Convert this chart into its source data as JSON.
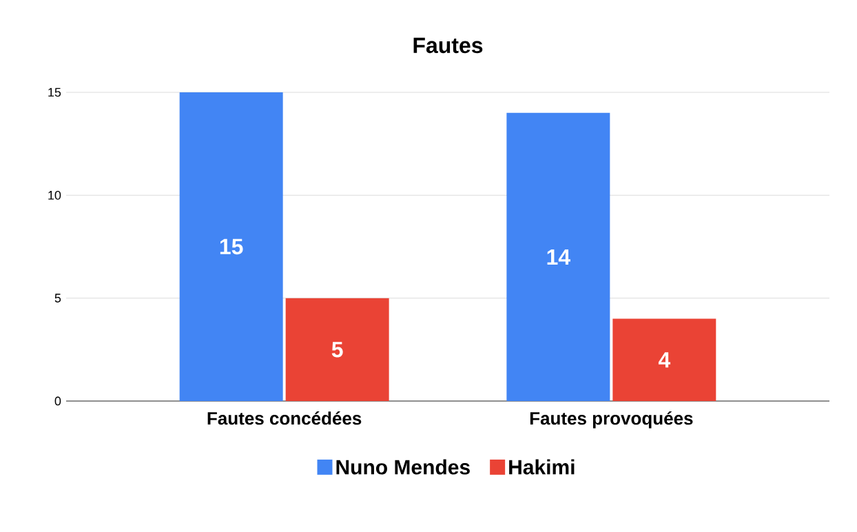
{
  "chart_data": {
    "type": "bar",
    "title": "Fautes",
    "categories": [
      "Fautes concédées",
      "Fautes provoquées"
    ],
    "series": [
      {
        "name": "Nuno Mendes",
        "color": "#4285f4",
        "values": [
          15,
          14
        ]
      },
      {
        "name": "Hakimi",
        "color": "#ea4335",
        "values": [
          5,
          4
        ]
      }
    ],
    "ylim": [
      0,
      15
    ],
    "yticks": [
      0,
      5,
      10,
      15
    ],
    "grid": "y",
    "legend": "bottom",
    "data_labels": true
  }
}
